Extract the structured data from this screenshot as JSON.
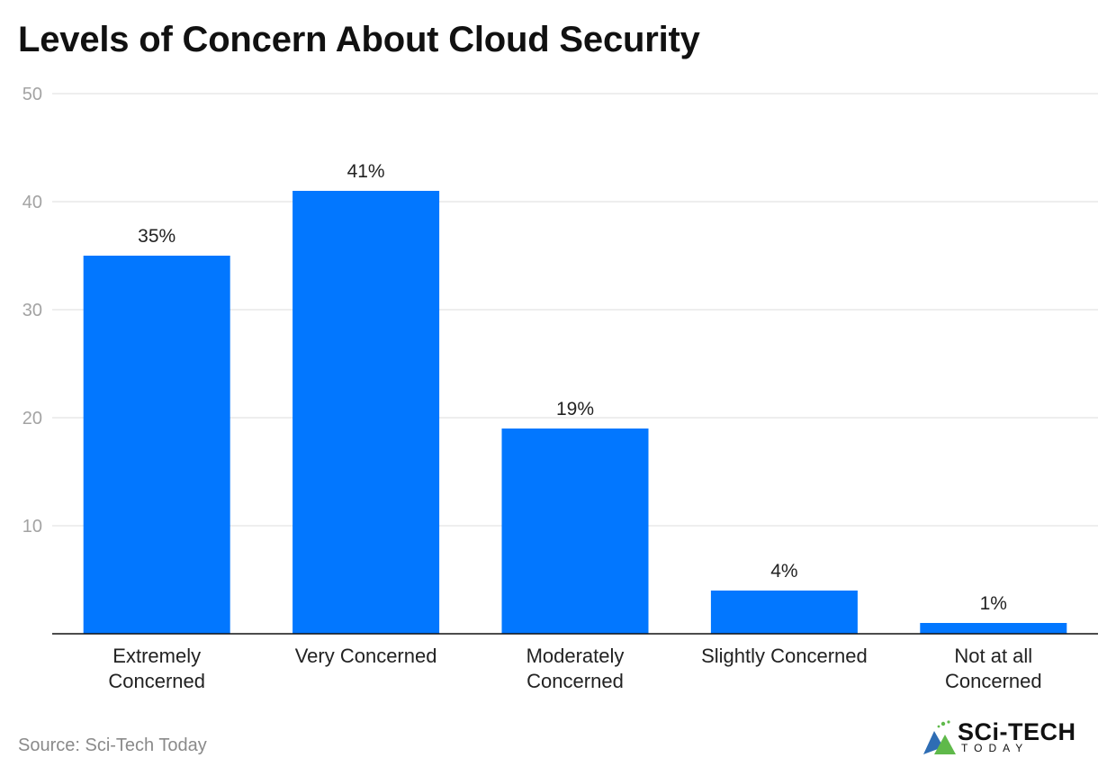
{
  "chart_data": {
    "type": "bar",
    "title": "Levels of Concern About Cloud Security",
    "categories": [
      [
        "Extremely",
        "Concerned"
      ],
      [
        "Very Concerned"
      ],
      [
        "Moderately",
        "Concerned"
      ],
      [
        "Slightly Concerned"
      ],
      [
        "Not at all",
        "Concerned"
      ]
    ],
    "values": [
      35,
      41,
      19,
      4,
      1
    ],
    "data_labels": [
      "35%",
      "41%",
      "19%",
      "4%",
      "1%"
    ],
    "ylim": [
      0,
      50
    ],
    "yticks": [
      10,
      20,
      30,
      40,
      50
    ],
    "ytick_labels": [
      "10",
      "20",
      "30",
      "40",
      "50"
    ],
    "xlabel": "",
    "ylabel": "",
    "grid": true,
    "legend": "none"
  },
  "colors": {
    "bar": "#0277ff",
    "grid": "#dddddd",
    "tick_text": "#a3a3a3",
    "axis": "#111111",
    "label_text": "#222222",
    "logo_green": "#5fb94a",
    "logo_blue": "#2e6db4"
  },
  "source": "Source: Sci-Tech Today",
  "logo": {
    "main": "SCi-TECH",
    "sub": "TODAY"
  }
}
